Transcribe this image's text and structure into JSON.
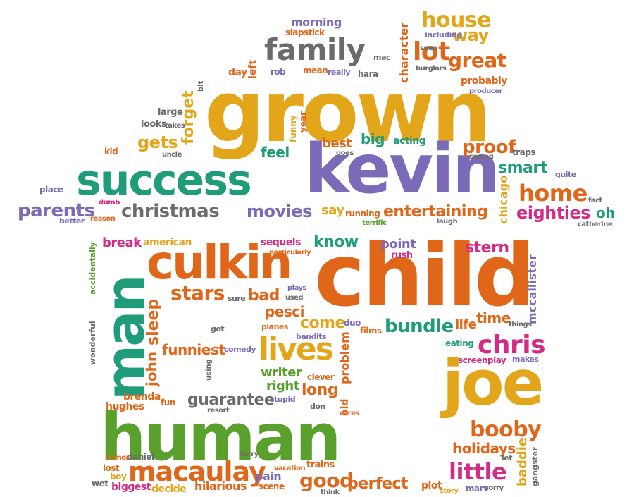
{
  "colors": {
    "orange": "#e0661a",
    "gold": "#e3a61b",
    "teal": "#1f9c7a",
    "purple": "#7a6ab8",
    "green": "#5aa02c",
    "magenta": "#d42b86",
    "gray": "#6b6b6b"
  },
  "words": {
    "grown": "grown",
    "kevin": "kevin",
    "success": "success",
    "child": "child",
    "human": "human",
    "man": "man",
    "culkin": "culkin",
    "joe": "joe",
    "family": "family",
    "christmas": "christmas",
    "lives": "lives",
    "macaulay": "macaulay",
    "house": "house",
    "home": "home",
    "lot": "lot",
    "great": "great",
    "way": "way",
    "movies": "movies",
    "parents": "parents",
    "entertaining": "entertaining",
    "eighties": "eighties",
    "chris": "chris",
    "booby": "booby",
    "little": "little",
    "bundle": "bundle",
    "stars": "stars",
    "funniest": "funniest",
    "guarantee": "guarantee",
    "good": "good",
    "perfect": "perfect",
    "holidays": "holidays",
    "break": "break",
    "american": "american",
    "gets": "gets",
    "proof": "proof",
    "smart": "smart",
    "feel": "feel",
    "best": "best",
    "big": "big",
    "acting": "acting",
    "know": "know",
    "point": "point",
    "stern": "stern",
    "sequels": "sequels",
    "bad": "bad",
    "pesci": "pesci",
    "come": "come",
    "time": "time",
    "writer": "writer",
    "right": "right",
    "long": "long",
    "clever": "clever",
    "hughes": "hughes",
    "brenda": "brenda",
    "pain": "pain",
    "scene": "scene",
    "hilarious": "hilarious",
    "decide": "decide",
    "biggest": "biggest",
    "boy": "boy",
    "wet": "wet",
    "lost": "lost",
    "daniel": "daniel",
    "morning": "morning",
    "slapstick": "slapstick",
    "day": "day",
    "rob": "rob",
    "mean": "mean",
    "really": "really",
    "hara": "hara",
    "mac": "mac",
    "including": "including",
    "seen": "seen",
    "burglars": "burglars",
    "probably": "probably",
    "producer": "producer",
    "large": "large",
    "looks": "looks",
    "takes": "takes",
    "kid": "kid",
    "uncle": "uncle",
    "place": "place",
    "dumb": "dumb",
    "better": "better",
    "reason": "reason",
    "say": "say",
    "running": "running",
    "terrific": "terrific",
    "laugh": "laugh",
    "seeing": "seeing",
    "traps": "traps",
    "quite": "quite",
    "fact": "fact",
    "oh": "oh",
    "catherine": "catherine",
    "goes": "goes",
    "particularly": "particularly",
    "rush": "rush",
    "sure": "sure",
    "plays": "plays",
    "used": "used",
    "duo": "duo",
    "films": "films",
    "life": "life",
    "things": "things",
    "eating": "eating",
    "makes": "makes",
    "screenplay": "screenplay",
    "got": "got",
    "planes": "planes",
    "bandits": "bandits",
    "comedy": "comedy",
    "stupid": "stupid",
    "don": "don",
    "cares": "cares",
    "fun": "fun",
    "resort": "resort",
    "harry": "harry",
    "humor": "humor",
    "vacation": "vacation",
    "trains": "trains",
    "think": "think",
    "plot": "plot",
    "story": "story",
    "marv": "marv",
    "sorry": "sorry",
    "let": "let",
    "left": "left",
    "character": "character",
    "forget": "forget",
    "bit": "bit",
    "funny": "funny",
    "year": "year",
    "chicago": "chicago",
    "accidentally": "accidentally",
    "wonderful": "wonderful",
    "sleep": "sleep",
    "john": "john",
    "using": "using",
    "problem": "problem",
    "old": "old",
    "mccallister": "mccallister",
    "baddie": "baddie",
    "gangster": "gangster"
  }
}
